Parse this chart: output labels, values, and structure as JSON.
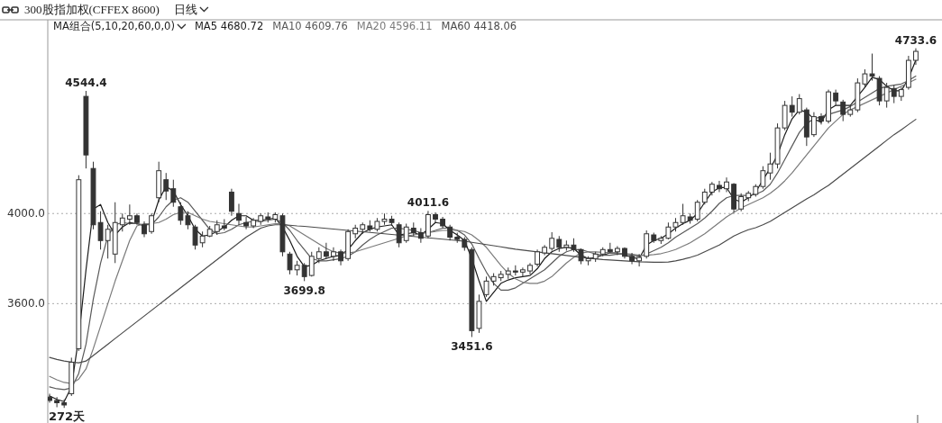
{
  "chart_data": {
    "type": "candlestick",
    "title": "300股指加权(CFFEX 8600)",
    "subtitle": "日线",
    "legend_title": "MA组合(5,10,20,60,0,0)",
    "legend": "top left",
    "color": "#333333",
    "grid": "y",
    "tick_labels": "y",
    "ylim": [
      3070,
      4860
    ],
    "yticks": [
      {
        "value": 3600,
        "label": "3600.0"
      },
      {
        "value": 4000,
        "label": "4000.0"
      }
    ],
    "categories": [
      null,
      null,
      null,
      null,
      null,
      null,
      null,
      null,
      null,
      null,
      null,
      null,
      null,
      null,
      null,
      null,
      null,
      null,
      null,
      null,
      null,
      null,
      null,
      null,
      null,
      null,
      null,
      null,
      null,
      null,
      null,
      null,
      null,
      null,
      null,
      null,
      null,
      null,
      null,
      null,
      null,
      null,
      null,
      null,
      null,
      null,
      null,
      null,
      null,
      null,
      null,
      null,
      null,
      null,
      null,
      null,
      null,
      null,
      null,
      null,
      null,
      null,
      null,
      null,
      null,
      null,
      null,
      null,
      null,
      null,
      null,
      null,
      null,
      null,
      null,
      null,
      null,
      null,
      null,
      null,
      null,
      null,
      null,
      null,
      null,
      null,
      null,
      null,
      null,
      null,
      null,
      null,
      null,
      null,
      null,
      null,
      null,
      null,
      null,
      null,
      null,
      null,
      null,
      null,
      null,
      null,
      null,
      null,
      null,
      null,
      null,
      null,
      null,
      null,
      null,
      null,
      null,
      null,
      null,
      null
    ],
    "ohlc": [
      [
        3185,
        3200,
        3160,
        3170
      ],
      [
        3170,
        3185,
        3140,
        3160
      ],
      [
        3160,
        3175,
        3137,
        3150
      ],
      [
        3200,
        3360,
        3190,
        3340
      ],
      [
        3400,
        4170,
        3390,
        4150
      ],
      [
        4520,
        4544.4,
        4200,
        4260
      ],
      [
        4200,
        4230,
        3930,
        3950
      ],
      [
        3960,
        4010,
        3840,
        3880
      ],
      [
        3880,
        3950,
        3800,
        3930
      ],
      [
        3820,
        4050,
        3780,
        3960
      ],
      [
        3950,
        4000,
        3920,
        3980
      ],
      [
        3975,
        4040,
        3950,
        3990
      ],
      [
        3990,
        4000,
        3950,
        3960
      ],
      [
        3950,
        3965,
        3895,
        3910
      ],
      [
        3920,
        4000,
        3910,
        3990
      ],
      [
        4070,
        4230,
        4050,
        4190
      ],
      [
        4150,
        4180,
        4060,
        4100
      ],
      [
        4110,
        4150,
        4030,
        4050
      ],
      [
        4030,
        4050,
        3950,
        3970
      ],
      [
        3990,
        4010,
        3930,
        3950
      ],
      [
        3940,
        3950,
        3840,
        3860
      ],
      [
        3870,
        3920,
        3850,
        3900
      ],
      [
        3900,
        3945,
        3895,
        3930
      ],
      [
        3920,
        3970,
        3905,
        3950
      ],
      [
        3945,
        3975,
        3925,
        3935
      ],
      [
        4095,
        4110,
        3990,
        4010
      ],
      [
        4000,
        4043,
        3950,
        3970
      ],
      [
        3960,
        3985,
        3930,
        3945
      ],
      [
        3945,
        3980,
        3935,
        3970
      ],
      [
        3965,
        4000,
        3950,
        3990
      ],
      [
        3985,
        4005,
        3960,
        3975
      ],
      [
        3975,
        4005,
        3960,
        3995
      ],
      [
        3990,
        4000,
        3810,
        3830
      ],
      [
        3820,
        3830,
        3730,
        3750
      ],
      [
        3750,
        3790,
        3725,
        3770
      ],
      [
        3770,
        3780,
        3699.8,
        3720
      ],
      [
        3725,
        3830,
        3720,
        3810
      ],
      [
        3800,
        3850,
        3780,
        3830
      ],
      [
        3830,
        3870,
        3800,
        3810
      ],
      [
        3810,
        3850,
        3790,
        3830
      ],
      [
        3830,
        3840,
        3770,
        3790
      ],
      [
        3800,
        3930,
        3790,
        3920
      ],
      [
        3910,
        3950,
        3890,
        3935
      ],
      [
        3930,
        3960,
        3910,
        3950
      ],
      [
        3945,
        3970,
        3920,
        3930
      ],
      [
        3930,
        3980,
        3920,
        3965
      ],
      [
        3965,
        4000,
        3950,
        3975
      ],
      [
        3975,
        3990,
        3945,
        3960
      ],
      [
        3950,
        3960,
        3850,
        3870
      ],
      [
        3880,
        3955,
        3870,
        3940
      ],
      [
        3935,
        3960,
        3900,
        3915
      ],
      [
        3915,
        3935,
        3870,
        3890
      ],
      [
        3900,
        4011.6,
        3890,
        3995
      ],
      [
        3995,
        4005,
        3960,
        3975
      ],
      [
        3975,
        3985,
        3935,
        3945
      ],
      [
        3940,
        3950,
        3880,
        3895
      ],
      [
        3895,
        3915,
        3870,
        3885
      ],
      [
        3885,
        3895,
        3835,
        3850
      ],
      [
        3840,
        3850,
        3451.6,
        3480
      ],
      [
        3490,
        3640,
        3470,
        3610
      ],
      [
        3640,
        3720,
        3630,
        3700
      ],
      [
        3700,
        3735,
        3680,
        3720
      ],
      [
        3715,
        3745,
        3700,
        3730
      ],
      [
        3730,
        3760,
        3710,
        3745
      ],
      [
        3745,
        3770,
        3725,
        3740
      ],
      [
        3740,
        3760,
        3720,
        3750
      ],
      [
        3745,
        3780,
        3730,
        3770
      ],
      [
        3775,
        3840,
        3765,
        3830
      ],
      [
        3825,
        3860,
        3815,
        3850
      ],
      [
        3845,
        3917,
        3835,
        3890
      ],
      [
        3885,
        3900,
        3830,
        3850
      ],
      [
        3850,
        3880,
        3835,
        3860
      ],
      [
        3860,
        3890,
        3830,
        3840
      ],
      [
        3840,
        3845,
        3775,
        3790
      ],
      [
        3790,
        3810,
        3770,
        3800
      ],
      [
        3800,
        3830,
        3785,
        3820
      ],
      [
        3820,
        3850,
        3810,
        3840
      ],
      [
        3840,
        3870,
        3825,
        3830
      ],
      [
        3830,
        3855,
        3815,
        3845
      ],
      [
        3845,
        3850,
        3800,
        3810
      ],
      [
        3810,
        3825,
        3775,
        3790
      ],
      [
        3790,
        3820,
        3765,
        3805
      ],
      [
        3810,
        3925,
        3800,
        3910
      ],
      [
        3905,
        3915,
        3870,
        3880
      ],
      [
        3880,
        3900,
        3865,
        3890
      ],
      [
        3890,
        3960,
        3885,
        3940
      ],
      [
        3940,
        3980,
        3920,
        3960
      ],
      [
        3960,
        4043,
        3950,
        3990
      ],
      [
        3985,
        4000,
        3955,
        3970
      ],
      [
        3975,
        4060,
        3965,
        4050
      ],
      [
        4050,
        4110,
        4040,
        4095
      ],
      [
        4095,
        4140,
        4080,
        4130
      ],
      [
        4125,
        4145,
        4095,
        4110
      ],
      [
        4110,
        4160,
        4095,
        4140
      ],
      [
        4130,
        4135,
        4005,
        4020
      ],
      [
        4020,
        4090,
        4010,
        4075
      ],
      [
        4070,
        4100,
        4055,
        4090
      ],
      [
        4085,
        4130,
        4075,
        4120
      ],
      [
        4120,
        4210,
        4110,
        4190
      ],
      [
        4180,
        4270,
        4150,
        4220
      ],
      [
        4220,
        4400,
        4200,
        4380
      ],
      [
        4380,
        4500,
        4370,
        4480
      ],
      [
        4480,
        4520,
        4430,
        4450
      ],
      [
        4450,
        4530,
        4440,
        4510
      ],
      [
        4460,
        4470,
        4300,
        4340
      ],
      [
        4350,
        4450,
        4340,
        4430
      ],
      [
        4430,
        4445,
        4395,
        4410
      ],
      [
        4410,
        4550,
        4400,
        4540
      ],
      [
        4535,
        4550,
        4480,
        4500
      ],
      [
        4495,
        4505,
        4410,
        4440
      ],
      [
        4440,
        4480,
        4430,
        4460
      ],
      [
        4460,
        4600,
        4450,
        4580
      ],
      [
        4575,
        4640,
        4560,
        4620
      ],
      [
        4620,
        4710,
        4590,
        4610
      ],
      [
        4600,
        4610,
        4480,
        4500
      ],
      [
        4500,
        4580,
        4470,
        4560
      ],
      [
        4555,
        4570,
        4490,
        4520
      ],
      [
        4520,
        4560,
        4500,
        4550
      ],
      [
        4560,
        4700,
        4550,
        4680
      ],
      [
        4680,
        4733.6,
        4660,
        4720
      ]
    ],
    "series": [
      {
        "name": "MA5 4680.72",
        "type": "line",
        "color": "#1a1a1a",
        "values": [
          3190,
          3175,
          3165,
          3230,
          3450,
          3750,
          4020,
          4040,
          3960,
          3905,
          3940,
          3960,
          3955,
          3945,
          3960,
          4060,
          4120,
          4100,
          4040,
          3990,
          3930,
          3900,
          3905,
          3920,
          3940,
          3970,
          3990,
          3990,
          3970,
          3970,
          3975,
          3980,
          3940,
          3880,
          3810,
          3765,
          3770,
          3790,
          3800,
          3810,
          3815,
          3840,
          3880,
          3915,
          3930,
          3940,
          3945,
          3950,
          3905,
          3910,
          3915,
          3905,
          3930,
          3960,
          3955,
          3925,
          3905,
          3880,
          3800,
          3700,
          3610,
          3650,
          3690,
          3705,
          3715,
          3720,
          3725,
          3755,
          3800,
          3830,
          3845,
          3850,
          3845,
          3815,
          3800,
          3805,
          3815,
          3825,
          3825,
          3815,
          3805,
          3800,
          3860,
          3880,
          3890,
          3910,
          3935,
          3955,
          3970,
          4000,
          4050,
          4095,
          4115,
          4115,
          4065,
          4050,
          4070,
          4095,
          4150,
          4200,
          4260,
          4350,
          4420,
          4460,
          4450,
          4420,
          4405,
          4460,
          4480,
          4480,
          4480,
          4520,
          4560,
          4605,
          4595,
          4565,
          4545,
          4545,
          4600,
          4681
        ]
      },
      {
        "name": "MA10 4609.76",
        "type": "line",
        "color": "#5a5a5a",
        "values": [
          3230,
          3222,
          3218,
          3225,
          3290,
          3420,
          3620,
          3780,
          3900,
          3950,
          3960,
          3955,
          3955,
          3950,
          3950,
          3985,
          4030,
          4060,
          4070,
          4050,
          4010,
          3970,
          3930,
          3910,
          3915,
          3930,
          3950,
          3960,
          3965,
          3965,
          3970,
          3975,
          3960,
          3925,
          3880,
          3840,
          3800,
          3790,
          3790,
          3795,
          3800,
          3810,
          3830,
          3860,
          3885,
          3905,
          3920,
          3935,
          3935,
          3930,
          3925,
          3915,
          3915,
          3925,
          3935,
          3935,
          3925,
          3905,
          3865,
          3800,
          3740,
          3690,
          3660,
          3660,
          3670,
          3690,
          3710,
          3730,
          3750,
          3780,
          3810,
          3830,
          3840,
          3840,
          3830,
          3820,
          3815,
          3815,
          3820,
          3820,
          3815,
          3810,
          3820,
          3835,
          3850,
          3870,
          3895,
          3915,
          3935,
          3955,
          3980,
          4010,
          4045,
          4070,
          4080,
          4080,
          4080,
          4085,
          4100,
          4130,
          4180,
          4240,
          4300,
          4360,
          4400,
          4420,
          4430,
          4440,
          4450,
          4460,
          4475,
          4495,
          4515,
          4535,
          4555,
          4565,
          4570,
          4575,
          4590,
          4610
        ]
      },
      {
        "name": "MA20 4596.11",
        "type": "line",
        "color": "#7a7a7a",
        "values": [
          3277,
          3262,
          3250,
          3245,
          3265,
          3310,
          3400,
          3500,
          3600,
          3700,
          3790,
          3880,
          3945,
          3955,
          3955,
          3960,
          3975,
          3995,
          4005,
          4005,
          3990,
          3975,
          3965,
          3960,
          3955,
          3950,
          3945,
          3940,
          3940,
          3945,
          3950,
          3955,
          3955,
          3945,
          3925,
          3905,
          3885,
          3865,
          3845,
          3830,
          3825,
          3825,
          3830,
          3840,
          3850,
          3860,
          3870,
          3880,
          3890,
          3900,
          3905,
          3910,
          3915,
          3920,
          3925,
          3925,
          3925,
          3920,
          3905,
          3880,
          3850,
          3810,
          3770,
          3735,
          3710,
          3695,
          3690,
          3690,
          3700,
          3720,
          3750,
          3780,
          3805,
          3825,
          3830,
          3830,
          3828,
          3826,
          3824,
          3822,
          3820,
          3815,
          3815,
          3818,
          3822,
          3830,
          3840,
          3855,
          3870,
          3890,
          3910,
          3935,
          3960,
          3985,
          4005,
          4025,
          4040,
          4055,
          4070,
          4090,
          4115,
          4145,
          4180,
          4220,
          4260,
          4300,
          4340,
          4380,
          4410,
          4440,
          4460,
          4475,
          4490,
          4505,
          4520,
          4535,
          4550,
          4565,
          4580,
          4596
        ]
      },
      {
        "name": "MA60 4418.06",
        "type": "line",
        "color": "#4a4a4a",
        "values": [
          3361,
          3352,
          3345,
          3340,
          3337,
          3345,
          3370,
          3395,
          3420,
          3445,
          3470,
          3495,
          3520,
          3545,
          3570,
          3595,
          3620,
          3645,
          3670,
          3695,
          3720,
          3745,
          3770,
          3795,
          3820,
          3845,
          3870,
          3895,
          3915,
          3935,
          3945,
          3950,
          3950,
          3948,
          3945,
          3943,
          3940,
          3937,
          3934,
          3931,
          3928,
          3925,
          3922,
          3919,
          3916,
          3913,
          3910,
          3907,
          3904,
          3901,
          3898,
          3895,
          3892,
          3889,
          3886,
          3883,
          3880,
          3877,
          3872,
          3867,
          3862,
          3857,
          3852,
          3847,
          3842,
          3838,
          3834,
          3830,
          3826,
          3822,
          3818,
          3814,
          3810,
          3806,
          3802,
          3799,
          3796,
          3794,
          3792,
          3790,
          3788,
          3786,
          3785,
          3784,
          3784,
          3785,
          3790,
          3797,
          3805,
          3815,
          3830,
          3845,
          3860,
          3880,
          3900,
          3915,
          3928,
          3937,
          3950,
          3965,
          3985,
          4005,
          4025,
          4045,
          4065,
          4083,
          4105,
          4125,
          4150,
          4175,
          4200,
          4225,
          4250,
          4275,
          4300,
          4325,
          4350,
          4372,
          4395,
          4418
        ]
      }
    ],
    "annotations": [
      {
        "text": "4544.4",
        "y": 4544.4
      },
      {
        "text": "3699.8",
        "y": 3699.8
      },
      {
        "text": "4011.6",
        "y": 4011.6
      },
      {
        "text": "3451.6",
        "y": 3451.6
      },
      {
        "text": "4733.6",
        "y": 4733.6
      },
      "272天"
    ]
  }
}
